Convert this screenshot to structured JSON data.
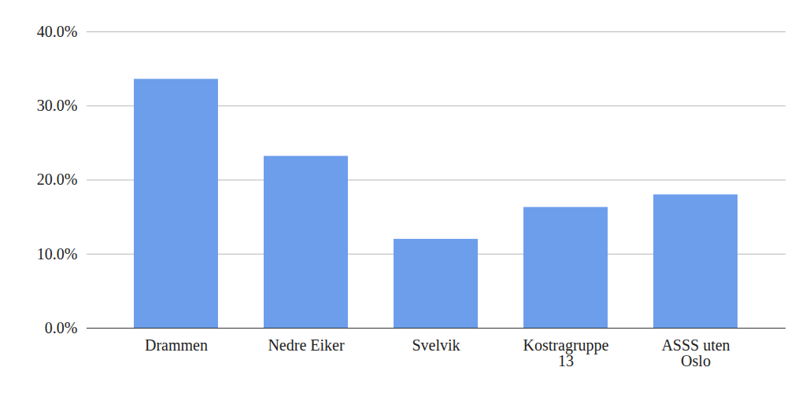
{
  "chart_data": {
    "type": "bar",
    "categories": [
      "Drammen",
      "Nedre Eiker",
      "Svelvik",
      "Kostragruppe 13",
      "ASSS uten Oslo"
    ],
    "values": [
      33.6,
      23.2,
      12.0,
      16.3,
      18.0
    ],
    "color": "#6d9eeb",
    "ylim": [
      0,
      40
    ],
    "yticks": [
      {
        "value": 0,
        "label": "0.0%"
      },
      {
        "value": 10,
        "label": "10.0%"
      },
      {
        "value": 20,
        "label": "20.0%"
      },
      {
        "value": 30,
        "label": "30.0%"
      },
      {
        "value": 40,
        "label": "40.0%"
      }
    ],
    "grid": true
  }
}
